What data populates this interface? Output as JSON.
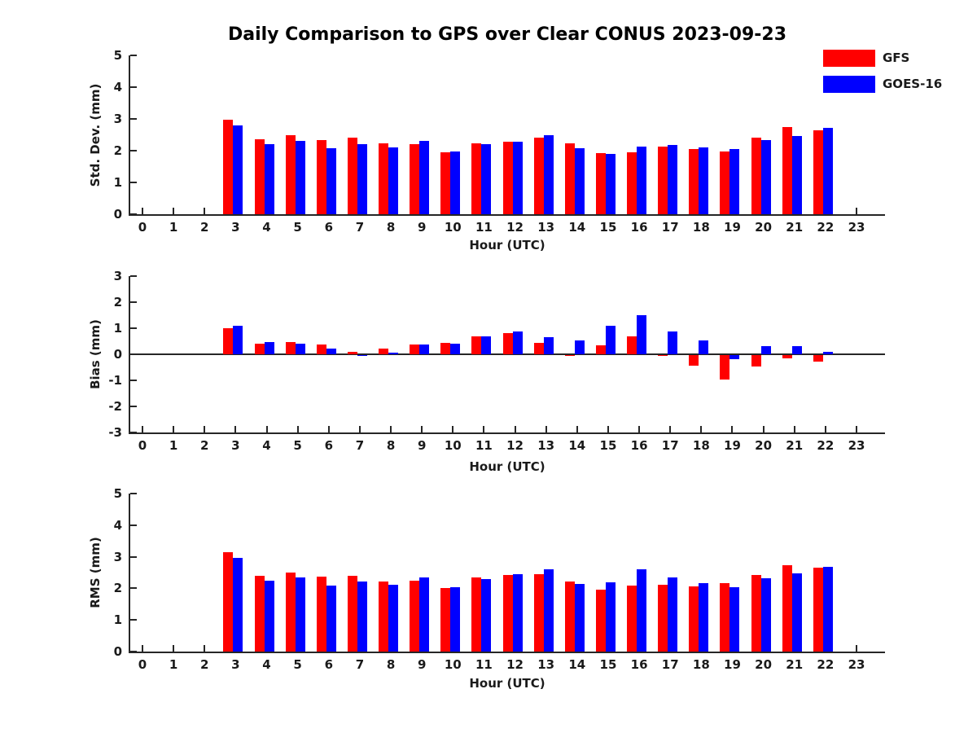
{
  "title": "Daily Comparison to GPS over Clear CONUS 2023-09-23",
  "colors": {
    "gfs": "#ff0000",
    "goes16": "#0000ff",
    "axis": "#262626"
  },
  "legend": {
    "position": "top-right",
    "entries": [
      {
        "label": "GFS",
        "color": "#ff0000"
      },
      {
        "label": "GOES-16",
        "color": "#0000ff"
      }
    ]
  },
  "x_axis": {
    "label": "Hour (UTC)",
    "ticks": [
      0,
      1,
      2,
      3,
      4,
      5,
      6,
      7,
      8,
      9,
      10,
      11,
      12,
      13,
      14,
      15,
      16,
      17,
      18,
      19,
      20,
      21,
      22,
      23
    ]
  },
  "chart_data": [
    {
      "type": "bar",
      "panel": "std-dev",
      "ylabel": "Std. Dev. (mm)",
      "xlabel": "Hour (UTC)",
      "ylim": [
        0,
        5
      ],
      "yticks": [
        0,
        1,
        2,
        3,
        4,
        5
      ],
      "grid": false,
      "x": [
        3,
        4,
        5,
        6,
        7,
        8,
        9,
        10,
        11,
        12,
        13,
        14,
        15,
        16,
        17,
        18,
        19,
        20,
        21,
        22
      ],
      "series": [
        {
          "name": "GFS",
          "values": [
            2.97,
            2.37,
            2.48,
            2.34,
            2.4,
            2.22,
            2.2,
            1.94,
            2.24,
            2.27,
            2.4,
            2.22,
            1.92,
            1.95,
            2.13,
            2.05,
            1.98,
            2.4,
            2.75,
            2.65
          ]
        },
        {
          "name": "GOES-16",
          "values": [
            2.8,
            2.2,
            2.32,
            2.08,
            2.21,
            2.11,
            2.3,
            1.97,
            2.2,
            2.29,
            2.5,
            2.07,
            1.89,
            2.12,
            2.17,
            2.11,
            2.06,
            2.33,
            2.47,
            2.72
          ]
        }
      ]
    },
    {
      "type": "bar",
      "panel": "bias",
      "ylabel": "Bias (mm)",
      "xlabel": "Hour (UTC)",
      "ylim": [
        -3,
        3
      ],
      "yticks": [
        -3,
        -2,
        -1,
        0,
        1,
        2,
        3
      ],
      "grid": false,
      "x": [
        3,
        4,
        5,
        6,
        7,
        8,
        9,
        10,
        11,
        12,
        13,
        14,
        15,
        16,
        17,
        18,
        19,
        20,
        21,
        22
      ],
      "series": [
        {
          "name": "GFS",
          "values": [
            1.0,
            0.42,
            0.46,
            0.36,
            0.1,
            0.21,
            0.36,
            0.45,
            0.7,
            0.8,
            0.45,
            -0.02,
            0.35,
            0.7,
            -0.03,
            -0.4,
            -0.93,
            -0.45,
            -0.13,
            -0.26
          ]
        },
        {
          "name": "GOES-16",
          "values": [
            1.08,
            0.47,
            0.42,
            0.22,
            -0.03,
            0.06,
            0.36,
            0.4,
            0.7,
            0.88,
            0.67,
            0.52,
            1.08,
            1.5,
            0.87,
            0.53,
            -0.15,
            0.3,
            0.3,
            0.1
          ]
        }
      ]
    },
    {
      "type": "bar",
      "panel": "rms",
      "ylabel": "RMS (mm)",
      "xlabel": "Hour (UTC)",
      "ylim": [
        0,
        5
      ],
      "yticks": [
        0,
        1,
        2,
        3,
        4,
        5
      ],
      "grid": false,
      "x": [
        3,
        4,
        5,
        6,
        7,
        8,
        9,
        10,
        11,
        12,
        13,
        14,
        15,
        16,
        17,
        18,
        19,
        20,
        21,
        22
      ],
      "series": [
        {
          "name": "GFS",
          "values": [
            3.14,
            2.39,
            2.51,
            2.38,
            2.4,
            2.22,
            2.24,
            2.0,
            2.34,
            2.41,
            2.44,
            2.22,
            1.95,
            2.08,
            2.12,
            2.05,
            2.16,
            2.41,
            2.72,
            2.66
          ]
        },
        {
          "name": "GOES-16",
          "values": [
            2.97,
            2.24,
            2.34,
            2.08,
            2.21,
            2.11,
            2.35,
            2.03,
            2.3,
            2.45,
            2.6,
            2.15,
            2.18,
            2.61,
            2.34,
            2.17,
            2.04,
            2.33,
            2.48,
            2.69
          ]
        }
      ]
    }
  ]
}
